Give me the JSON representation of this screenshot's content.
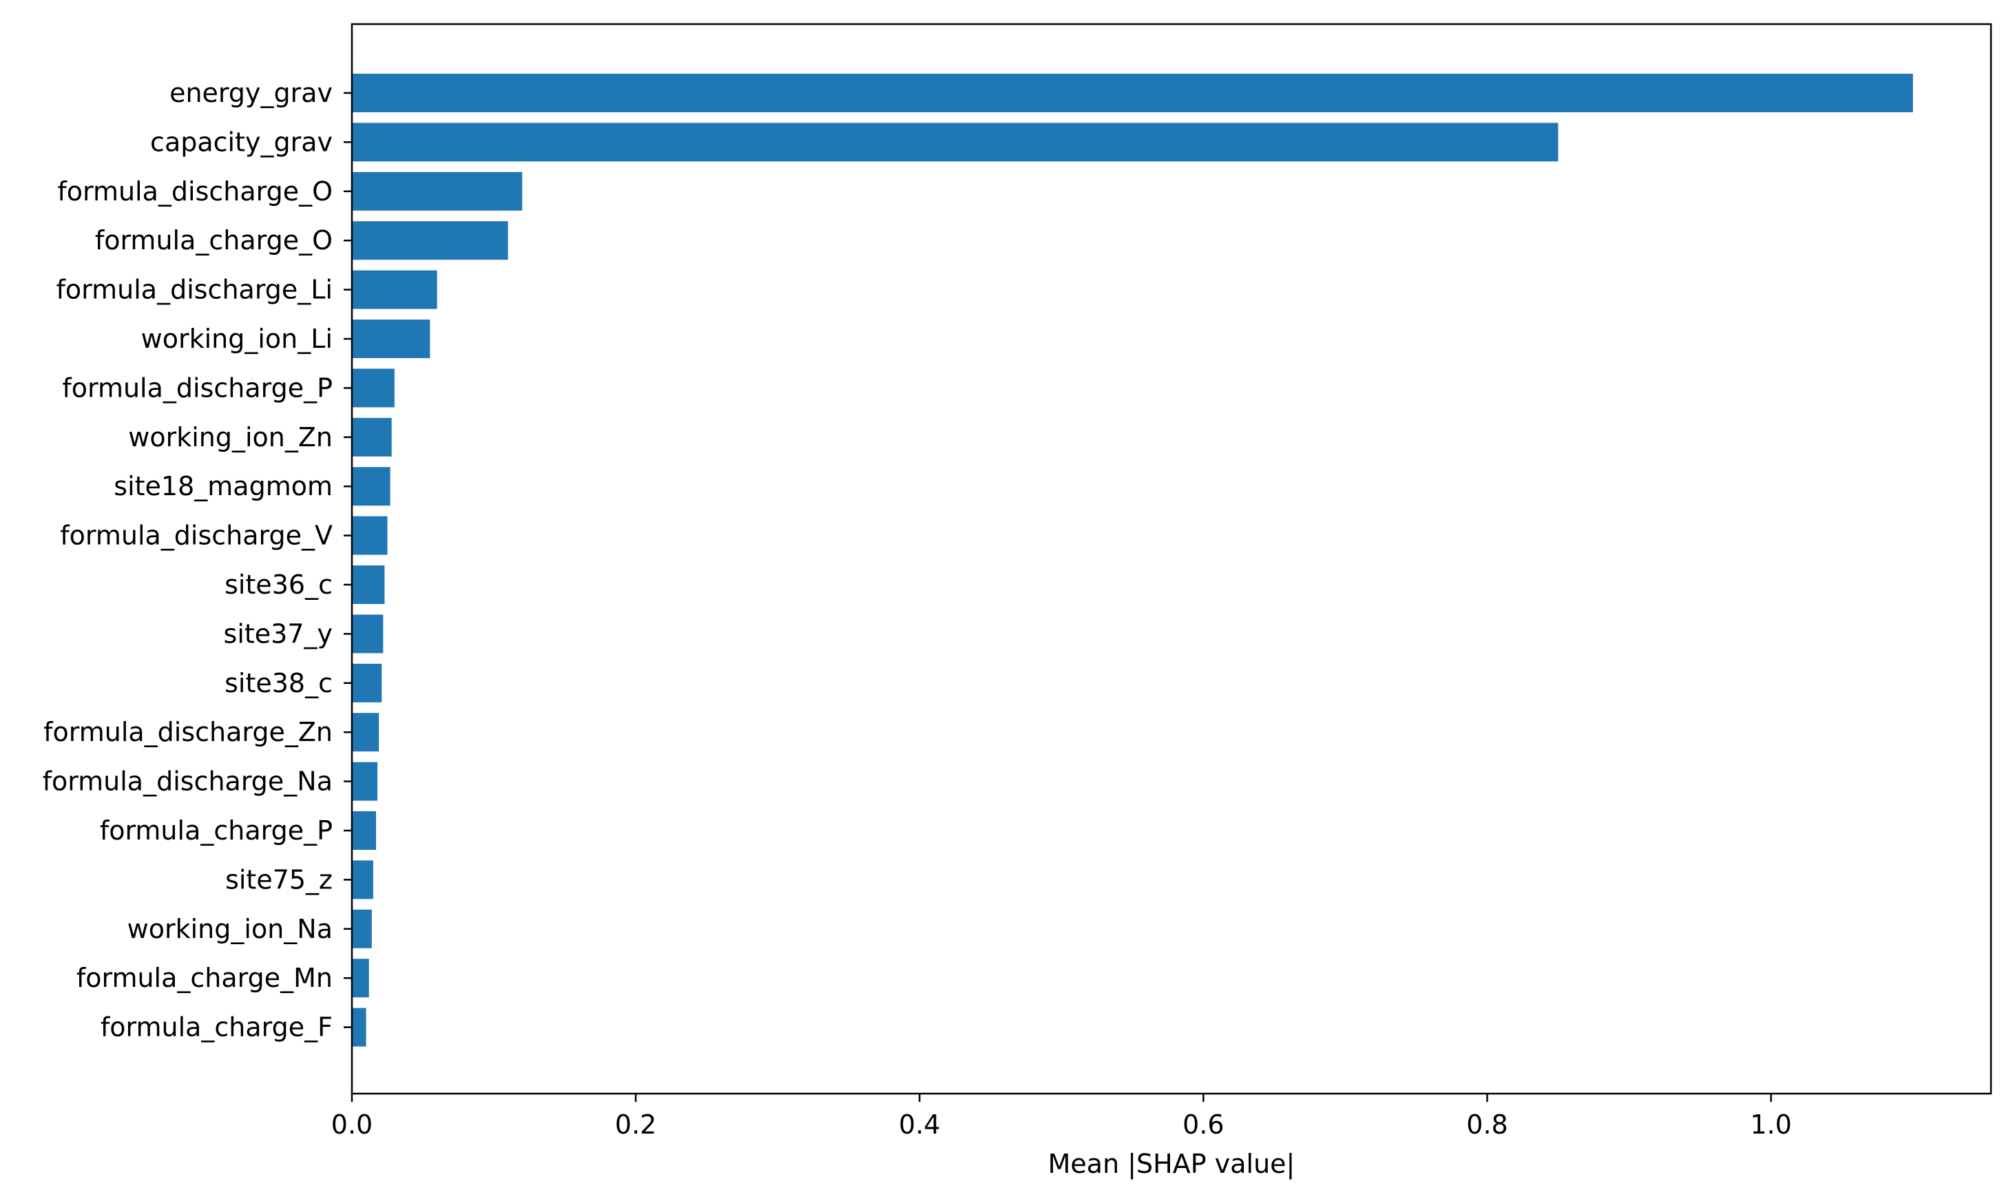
{
  "chart_data": {
    "type": "bar",
    "orientation": "horizontal",
    "title": "",
    "xlabel": "Mean |SHAP value|",
    "ylabel": "",
    "xlim": [
      0,
      1.155
    ],
    "xticks": [
      0.0,
      0.2,
      0.4,
      0.6,
      0.8,
      1.0
    ],
    "xtick_labels": [
      "0.0",
      "0.2",
      "0.4",
      "0.6",
      "0.8",
      "1.0"
    ],
    "grid": false,
    "legend": "none",
    "bar_color": "#1f77b4",
    "categories": [
      "energy_grav",
      "capacity_grav",
      "formula_discharge_O",
      "formula_charge_O",
      "formula_discharge_Li",
      "working_ion_Li",
      "formula_discharge_P",
      "working_ion_Zn",
      "site18_magmom",
      "formula_discharge_V",
      "site36_c",
      "site37_y",
      "site38_c",
      "formula_discharge_Zn",
      "formula_discharge_Na",
      "formula_charge_P",
      "site75_z",
      "working_ion_Na",
      "formula_charge_Mn",
      "formula_charge_F"
    ],
    "values": [
      1.1,
      0.85,
      0.12,
      0.11,
      0.06,
      0.055,
      0.03,
      0.028,
      0.027,
      0.025,
      0.023,
      0.022,
      0.021,
      0.019,
      0.018,
      0.017,
      0.015,
      0.014,
      0.012,
      0.01
    ]
  }
}
